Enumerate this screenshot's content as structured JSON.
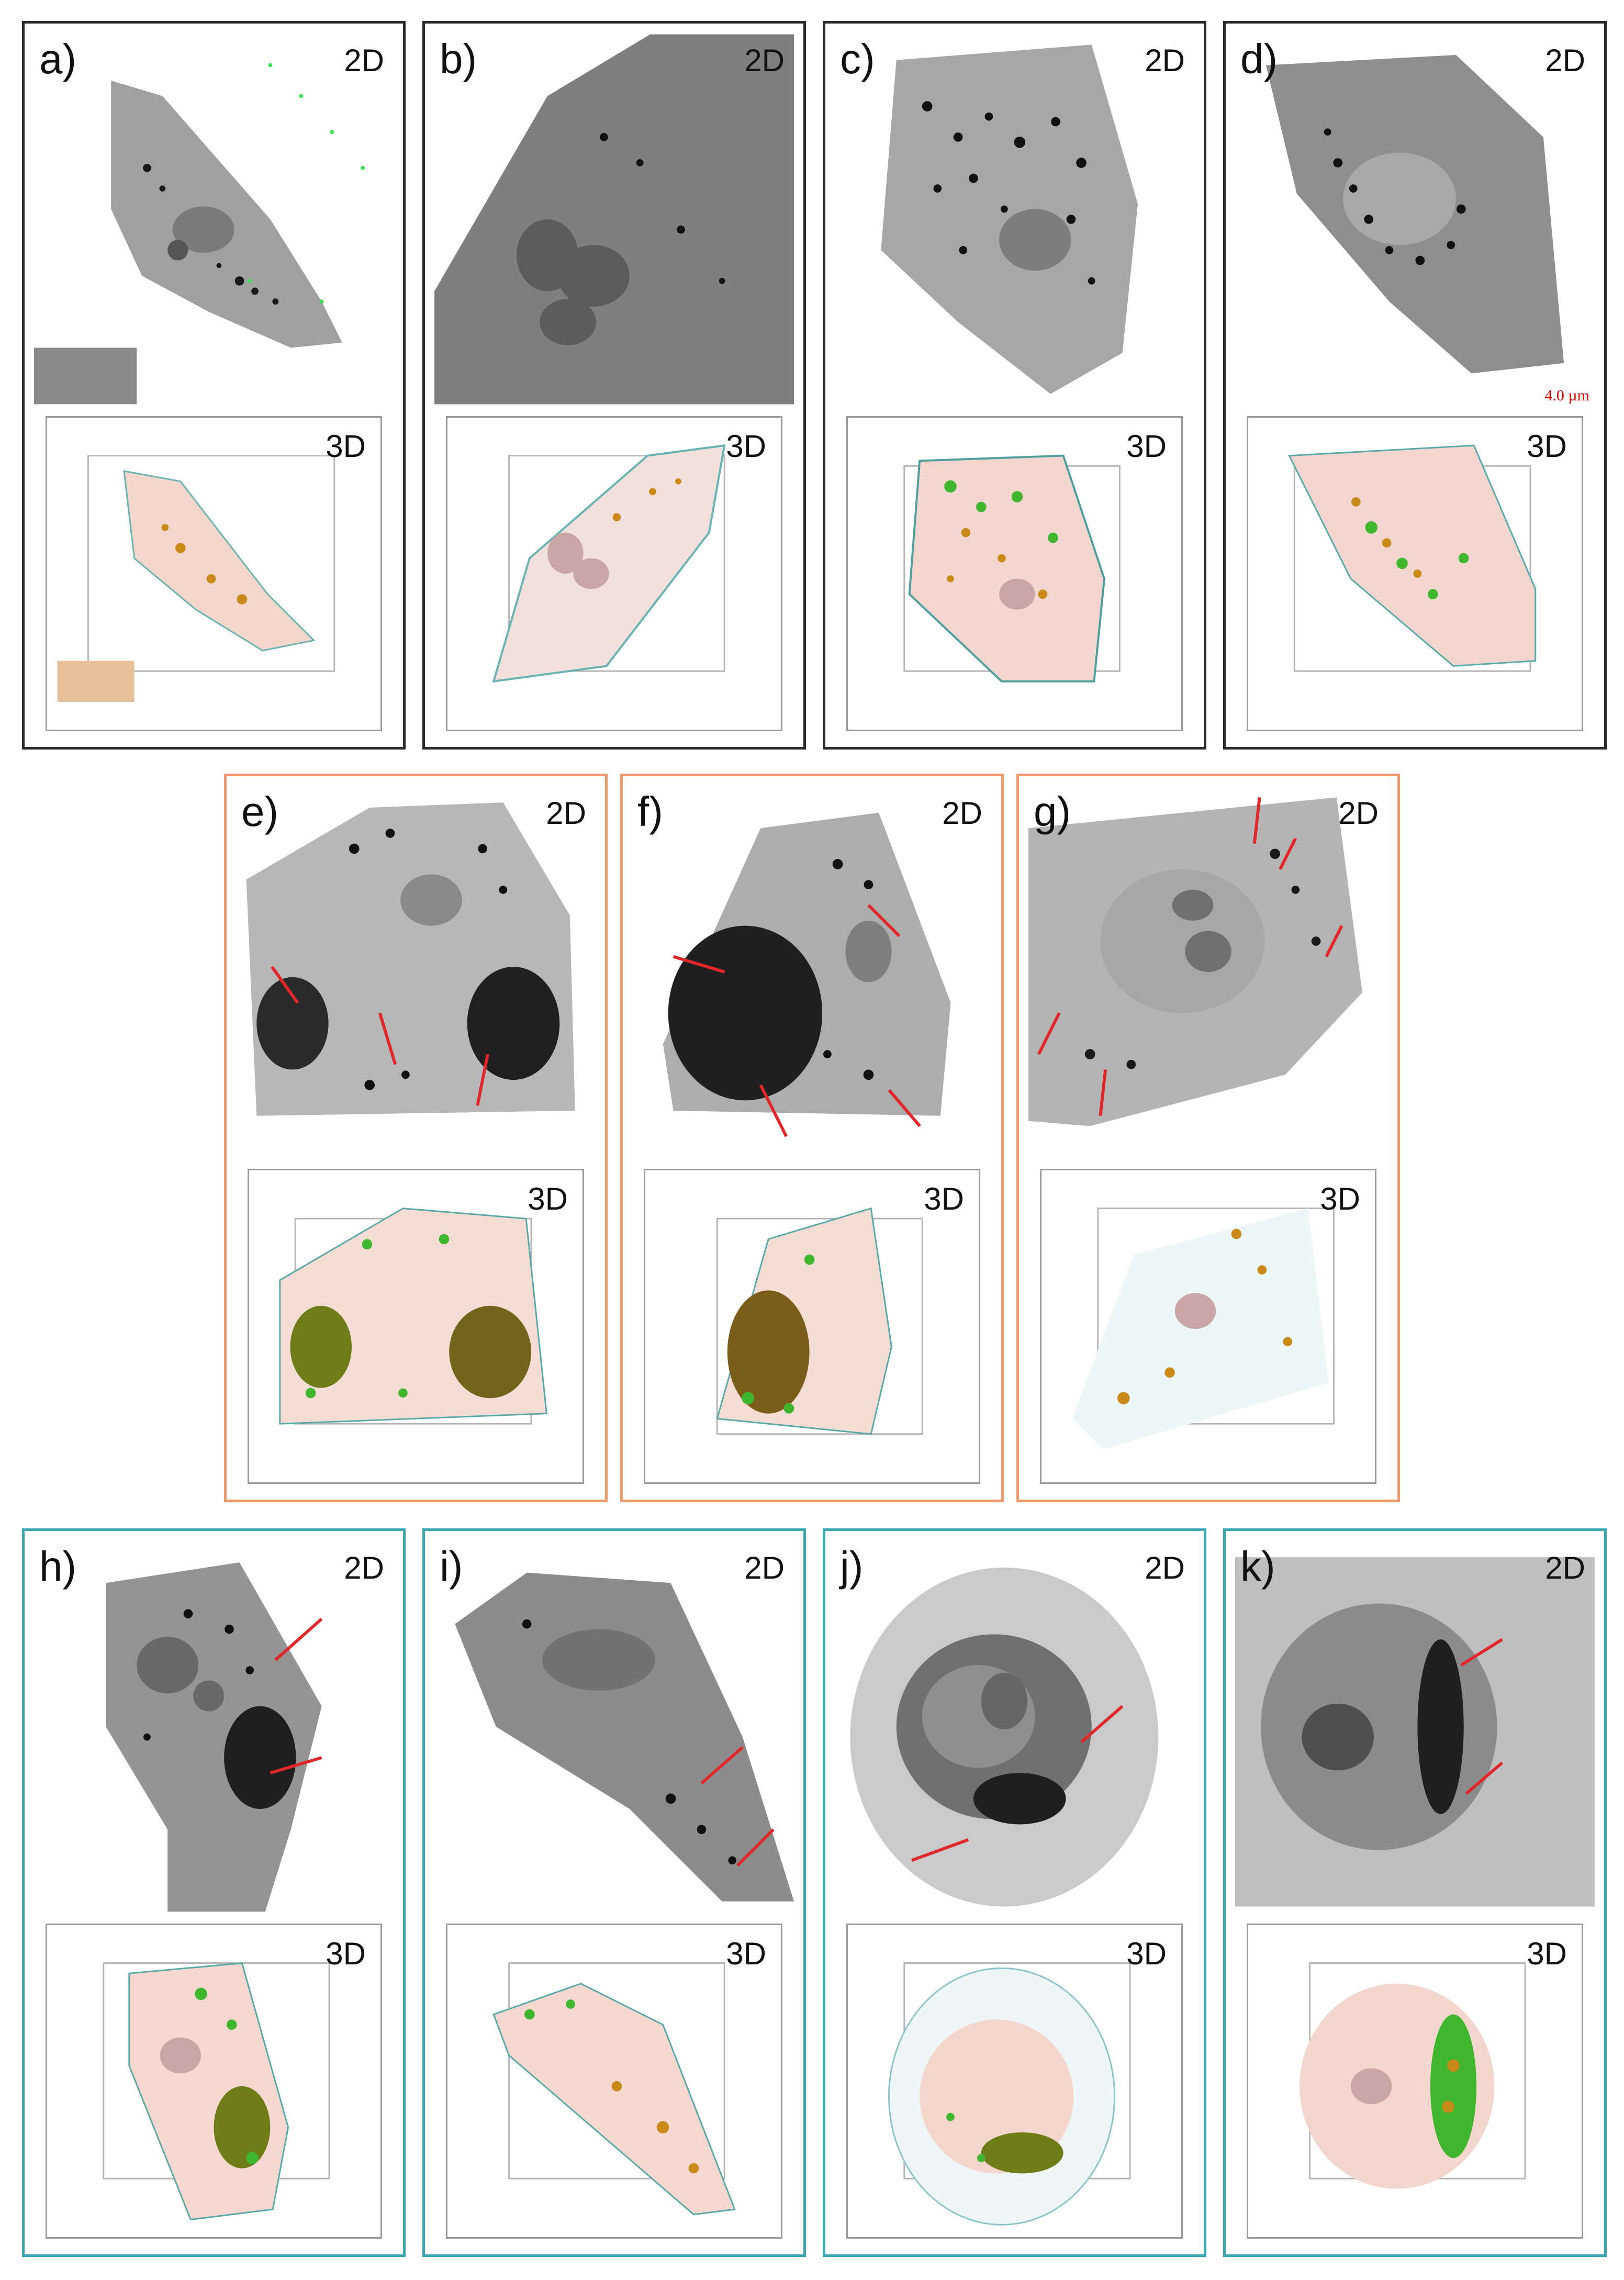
{
  "labels": {
    "twoD": "2D",
    "threeD": "3D",
    "scale": "4.0 µm"
  },
  "panels": [
    {
      "id": "a",
      "label": "a)"
    },
    {
      "id": "b",
      "label": "b)"
    },
    {
      "id": "c",
      "label": "c)"
    },
    {
      "id": "d",
      "label": "d)"
    },
    {
      "id": "e",
      "label": "e)"
    },
    {
      "id": "f",
      "label": "f)"
    },
    {
      "id": "g",
      "label": "g)"
    },
    {
      "id": "h",
      "label": "h)"
    },
    {
      "id": "i",
      "label": "i)"
    },
    {
      "id": "j",
      "label": "j)"
    },
    {
      "id": "k",
      "label": "k)"
    }
  ],
  "colors": {
    "row1_border": "#2b2b2b",
    "row2_border": "#ef9a6c",
    "row3_border": "#3aa7b2",
    "arrow": "#e0282a",
    "cell_gray": "#8f8f8f",
    "vesicle_orange": "#c98a1a",
    "vesicle_green": "#3fb62d",
    "membrane_teal": "#5aa9a9"
  }
}
